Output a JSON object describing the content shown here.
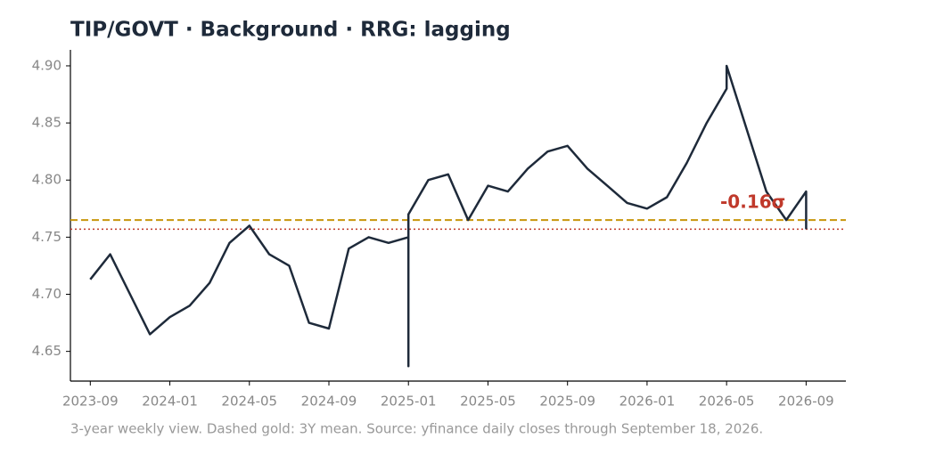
{
  "chart_data": {
    "type": "line",
    "title": "TIP/GOVT  ·  Background  ·  RRG: lagging",
    "footnote": "3-year weekly view. Dashed gold: 3Y mean. Source: yfinance daily closes through September 18, 2026.",
    "annotation": "-0.16σ",
    "x": [
      "2023-09",
      "2023-10",
      "2023-11",
      "2023-12",
      "2024-01",
      "2024-02",
      "2024-03",
      "2024-04",
      "2024-05",
      "2024-06",
      "2024-07",
      "2024-08",
      "2024-09",
      "2024-10",
      "2024-11",
      "2024-12",
      "2025-01",
      "2025-01",
      "2025-01",
      "2025-02",
      "2025-03",
      "2025-04",
      "2025-05",
      "2025-06",
      "2025-07",
      "2025-08",
      "2025-09",
      "2025-10",
      "2025-11",
      "2025-12",
      "2026-01",
      "2026-02",
      "2026-03",
      "2026-04",
      "2026-05",
      "2026-05",
      "2026-06",
      "2026-07",
      "2026-08",
      "2026-09",
      "2026-09"
    ],
    "series": [
      {
        "name": "TIP/GOVT",
        "color": "#1e2a3a",
        "values": [
          4.713,
          4.735,
          4.7,
          4.665,
          4.68,
          4.69,
          4.71,
          4.745,
          4.76,
          4.735,
          4.725,
          4.675,
          4.67,
          4.74,
          4.75,
          4.745,
          4.75,
          4.637,
          4.77,
          4.8,
          4.805,
          4.765,
          4.795,
          4.79,
          4.81,
          4.825,
          4.83,
          4.81,
          4.795,
          4.78,
          4.775,
          4.785,
          4.815,
          4.85,
          4.88,
          4.9,
          4.845,
          4.79,
          4.765,
          4.79,
          4.757
        ]
      }
    ],
    "mean": 4.765,
    "mean_color": "#c8960c",
    "current": 4.757,
    "current_color": "#c0392b",
    "xlim": [
      "2023-08",
      "2026-11"
    ],
    "xticks": [
      "2023-09",
      "2024-01",
      "2024-05",
      "2024-09",
      "2025-01",
      "2025-05",
      "2025-09",
      "2026-01",
      "2026-05",
      "2026-09"
    ],
    "ylim": [
      4.624,
      4.914
    ],
    "yticks": [
      {
        "value": 4.65,
        "label": "4.65"
      },
      {
        "value": 4.7,
        "label": "4.70"
      },
      {
        "value": 4.75,
        "label": "4.75"
      },
      {
        "value": 4.8,
        "label": "4.80"
      },
      {
        "value": 4.85,
        "label": "4.85"
      },
      {
        "value": 4.9,
        "label": "4.90"
      }
    ],
    "grid": false
  }
}
